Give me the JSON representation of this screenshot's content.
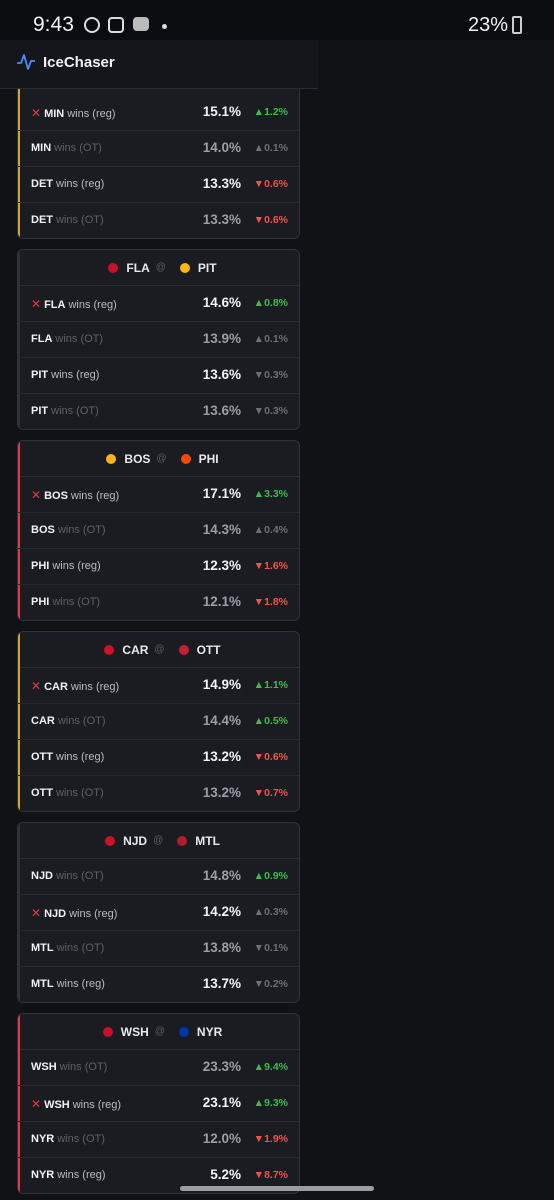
{
  "status_bar": {
    "time": "9:43",
    "battery": "23%"
  },
  "app": {
    "title": "IceChaser"
  },
  "cards": [
    {
      "accent": "#d4a72c",
      "rows": [
        {
          "picked": true,
          "team": "MIN",
          "kind": "wins (reg)",
          "pct": "15.1%",
          "change": "▲1.2%",
          "tone": "green"
        },
        {
          "picked": false,
          "team": "MIN",
          "kind": "wins (OT)",
          "pct": "14.0%",
          "change": "▲0.1%",
          "tone": "gray"
        },
        {
          "picked": false,
          "team": "DET",
          "kind": "wins (reg)",
          "pct": "13.3%",
          "change": "▼0.6%",
          "tone": "red"
        },
        {
          "picked": false,
          "team": "DET",
          "kind": "wins (OT)",
          "pct": "13.3%",
          "change": "▼0.6%",
          "tone": "red"
        }
      ]
    },
    {
      "accent": "#2f3238",
      "away": "FLA",
      "home": "PIT",
      "away_color": "#c8102e",
      "home_color": "#fcb514",
      "rows": [
        {
          "picked": true,
          "team": "FLA",
          "kind": "wins (reg)",
          "pct": "14.6%",
          "change": "▲0.8%",
          "tone": "green"
        },
        {
          "picked": false,
          "team": "FLA",
          "kind": "wins (OT)",
          "pct": "13.9%",
          "change": "▲0.1%",
          "tone": "gray"
        },
        {
          "picked": false,
          "team": "PIT",
          "kind": "wins (reg)",
          "pct": "13.6%",
          "change": "▼0.3%",
          "tone": "gray"
        },
        {
          "picked": false,
          "team": "PIT",
          "kind": "wins (OT)",
          "pct": "13.6%",
          "change": "▼0.3%",
          "tone": "gray"
        }
      ]
    },
    {
      "accent": "#e0394a",
      "away": "BOS",
      "home": "PHI",
      "away_color": "#fcb514",
      "home_color": "#f74902",
      "rows": [
        {
          "picked": true,
          "team": "BOS",
          "kind": "wins (reg)",
          "pct": "17.1%",
          "change": "▲3.3%",
          "tone": "green"
        },
        {
          "picked": false,
          "team": "BOS",
          "kind": "wins (OT)",
          "pct": "14.3%",
          "change": "▲0.4%",
          "tone": "gray"
        },
        {
          "picked": false,
          "team": "PHI",
          "kind": "wins (reg)",
          "pct": "12.3%",
          "change": "▼1.6%",
          "tone": "red"
        },
        {
          "picked": false,
          "team": "PHI",
          "kind": "wins (OT)",
          "pct": "12.1%",
          "change": "▼1.8%",
          "tone": "red"
        }
      ]
    },
    {
      "accent": "#d4a72c",
      "away": "CAR",
      "home": "OTT",
      "away_color": "#ce1126",
      "home_color": "#c52032",
      "rows": [
        {
          "picked": true,
          "team": "CAR",
          "kind": "wins (reg)",
          "pct": "14.9%",
          "change": "▲1.1%",
          "tone": "green"
        },
        {
          "picked": false,
          "team": "CAR",
          "kind": "wins (OT)",
          "pct": "14.4%",
          "change": "▲0.5%",
          "tone": "green"
        },
        {
          "picked": false,
          "team": "OTT",
          "kind": "wins (reg)",
          "pct": "13.2%",
          "change": "▼0.6%",
          "tone": "red"
        },
        {
          "picked": false,
          "team": "OTT",
          "kind": "wins (OT)",
          "pct": "13.2%",
          "change": "▼0.7%",
          "tone": "red"
        }
      ]
    },
    {
      "accent": "#2f3238",
      "away": "NJD",
      "home": "MTL",
      "away_color": "#ce1126",
      "home_color": "#af1e2d",
      "rows": [
        {
          "picked": false,
          "team": "NJD",
          "kind": "wins (OT)",
          "pct": "14.8%",
          "change": "▲0.9%",
          "tone": "green"
        },
        {
          "picked": true,
          "team": "NJD",
          "kind": "wins (reg)",
          "pct": "14.2%",
          "change": "▲0.3%",
          "tone": "gray"
        },
        {
          "picked": false,
          "team": "MTL",
          "kind": "wins (OT)",
          "pct": "13.8%",
          "change": "▼0.1%",
          "tone": "gray"
        },
        {
          "picked": false,
          "team": "MTL",
          "kind": "wins (reg)",
          "pct": "13.7%",
          "change": "▼0.2%",
          "tone": "gray"
        }
      ]
    },
    {
      "accent": "#e0394a",
      "away": "WSH",
      "home": "NYR",
      "away_color": "#c8102e",
      "home_color": "#0038a8",
      "rows": [
        {
          "picked": false,
          "team": "WSH",
          "kind": "wins (OT)",
          "pct": "23.3%",
          "change": "▲9.4%",
          "tone": "green"
        },
        {
          "picked": true,
          "team": "WSH",
          "kind": "wins (reg)",
          "pct": "23.1%",
          "change": "▲9.3%",
          "tone": "green"
        },
        {
          "picked": false,
          "team": "NYR",
          "kind": "wins (OT)",
          "pct": "12.0%",
          "change": "▼1.9%",
          "tone": "red"
        },
        {
          "picked": false,
          "team": "NYR",
          "kind": "wins (reg)",
          "pct": "5.2%",
          "change": "▼8.7%",
          "tone": "red"
        }
      ]
    }
  ]
}
